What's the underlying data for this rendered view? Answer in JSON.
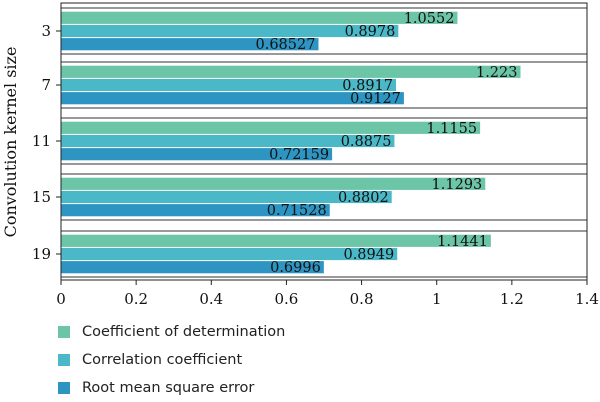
{
  "chart_data": {
    "type": "bar",
    "orientation": "horizontal",
    "ylabel": "Convolution kernel size",
    "xlabel": "",
    "categories": [
      "3",
      "7",
      "11",
      "15",
      "19"
    ],
    "xlim": [
      0,
      1.4
    ],
    "xticks": [
      "0",
      "0.2",
      "0.4",
      "0.6",
      "0.8",
      "1",
      "1.2",
      "1.4"
    ],
    "grid": false,
    "legend_position": "bottom",
    "series": [
      {
        "name": "Coefficient of determination",
        "color": "#6cc5a6",
        "values": [
          1.0552,
          1.223,
          1.1155,
          1.1293,
          1.1441
        ],
        "labels": [
          "1.0552",
          "1.223",
          "1.1155",
          "1.1293",
          "1.1441"
        ]
      },
      {
        "name": "Correlation coefficient",
        "color": "#4bb8c8",
        "values": [
          0.8978,
          0.8917,
          0.8875,
          0.8802,
          0.8949
        ],
        "labels": [
          "0.8978",
          "0.8917",
          "0.8875",
          "0.8802",
          "0.8949"
        ]
      },
      {
        "name": "Root mean square error",
        "color": "#2e95c3",
        "values": [
          0.68527,
          0.9127,
          0.72159,
          0.71528,
          0.6996
        ],
        "labels": [
          "0.68527",
          "0.9127",
          "0.72159",
          "0.71528",
          "0.6996"
        ]
      }
    ]
  }
}
